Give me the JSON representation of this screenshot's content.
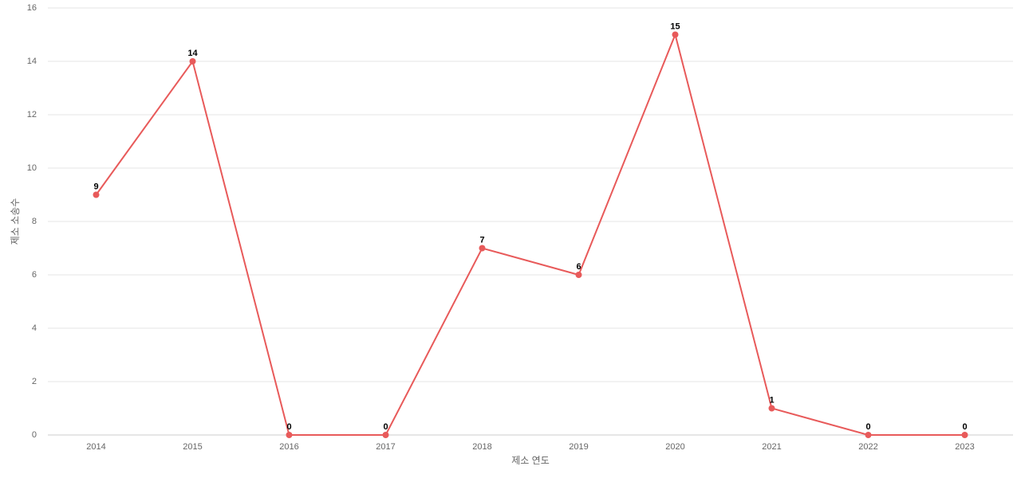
{
  "chart_data": {
    "type": "line",
    "x_label": "제소 연도",
    "y_label": "제소 소송수",
    "categories": [
      "2014",
      "2015",
      "2016",
      "2017",
      "2018",
      "2019",
      "2020",
      "2021",
      "2022",
      "2023"
    ],
    "values": [
      9,
      14,
      0,
      0,
      7,
      6,
      15,
      1,
      0,
      0
    ],
    "color": "#e85a5a",
    "ylim": [
      0,
      16
    ],
    "yticks": [
      0,
      2,
      4,
      6,
      8,
      10,
      12,
      14,
      16
    ],
    "grid": true
  }
}
